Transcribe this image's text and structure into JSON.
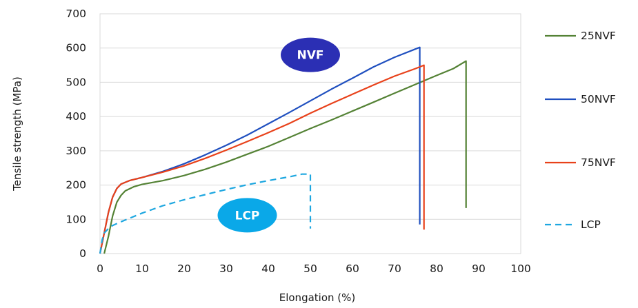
{
  "chart_data": {
    "type": "line",
    "title": "",
    "xlabel": "Elongation  (%)",
    "ylabel": "Tensile strength  (MPa)",
    "xlim": [
      0,
      100
    ],
    "ylim": [
      0,
      700
    ],
    "xticks": [
      0,
      10,
      20,
      30,
      40,
      50,
      60,
      70,
      80,
      90,
      100
    ],
    "yticks": [
      0,
      100,
      200,
      300,
      400,
      500,
      600,
      700
    ],
    "grid": "horizontal",
    "legend_position": "right",
    "annotations": [
      {
        "text": "NVF",
        "x": 50,
        "y": 580,
        "color": "#2b2fb4"
      },
      {
        "text": "LCP",
        "x": 35,
        "y": 112,
        "color": "#0aa8e8"
      }
    ],
    "series": [
      {
        "name": "25NVF",
        "color": "#548235",
        "dash": "solid",
        "points": [
          [
            1,
            0
          ],
          [
            2,
            50
          ],
          [
            3,
            110
          ],
          [
            4,
            150
          ],
          [
            5,
            170
          ],
          [
            6,
            183
          ],
          [
            8,
            195
          ],
          [
            10,
            202
          ],
          [
            15,
            213
          ],
          [
            20,
            228
          ],
          [
            25,
            246
          ],
          [
            30,
            267
          ],
          [
            35,
            290
          ],
          [
            40,
            313
          ],
          [
            45,
            339
          ],
          [
            50,
            365
          ],
          [
            55,
            390
          ],
          [
            60,
            416
          ],
          [
            65,
            442
          ],
          [
            70,
            468
          ],
          [
            75,
            494
          ],
          [
            80,
            520
          ],
          [
            84,
            540
          ],
          [
            87,
            562
          ],
          [
            87,
            133
          ]
        ]
      },
      {
        "name": "50NVF",
        "color": "#1f4fbf",
        "dash": "solid",
        "points": [
          [
            0,
            0
          ],
          [
            1,
            60
          ],
          [
            2,
            120
          ],
          [
            3,
            165
          ],
          [
            4,
            190
          ],
          [
            5,
            203
          ],
          [
            7,
            213
          ],
          [
            10,
            222
          ],
          [
            15,
            240
          ],
          [
            20,
            262
          ],
          [
            25,
            288
          ],
          [
            30,
            316
          ],
          [
            35,
            346
          ],
          [
            40,
            379
          ],
          [
            45,
            412
          ],
          [
            50,
            446
          ],
          [
            55,
            480
          ],
          [
            60,
            512
          ],
          [
            65,
            545
          ],
          [
            70,
            573
          ],
          [
            76,
            602
          ],
          [
            76,
            85
          ]
        ]
      },
      {
        "name": "75NVF",
        "color": "#e8411a",
        "dash": "solid",
        "points": [
          [
            0,
            0
          ],
          [
            1,
            60
          ],
          [
            2,
            120
          ],
          [
            3,
            165
          ],
          [
            4,
            190
          ],
          [
            5,
            203
          ],
          [
            7,
            213
          ],
          [
            10,
            222
          ],
          [
            15,
            238
          ],
          [
            20,
            256
          ],
          [
            25,
            278
          ],
          [
            30,
            302
          ],
          [
            35,
            327
          ],
          [
            40,
            353
          ],
          [
            45,
            380
          ],
          [
            50,
            410
          ],
          [
            55,
            438
          ],
          [
            60,
            465
          ],
          [
            65,
            492
          ],
          [
            70,
            518
          ],
          [
            75,
            540
          ],
          [
            77,
            550
          ],
          [
            77,
            70
          ]
        ]
      },
      {
        "name": "LCP",
        "color": "#1ea7e0",
        "dash": "dashed",
        "points": [
          [
            0,
            0
          ],
          [
            0.5,
            40
          ],
          [
            1,
            60
          ],
          [
            2,
            73
          ],
          [
            3,
            82
          ],
          [
            5,
            93
          ],
          [
            10,
            118
          ],
          [
            15,
            140
          ],
          [
            20,
            157
          ],
          [
            25,
            172
          ],
          [
            30,
            187
          ],
          [
            35,
            201
          ],
          [
            40,
            213
          ],
          [
            45,
            224
          ],
          [
            48,
            232
          ],
          [
            50,
            232
          ],
          [
            50,
            73
          ]
        ]
      }
    ]
  }
}
